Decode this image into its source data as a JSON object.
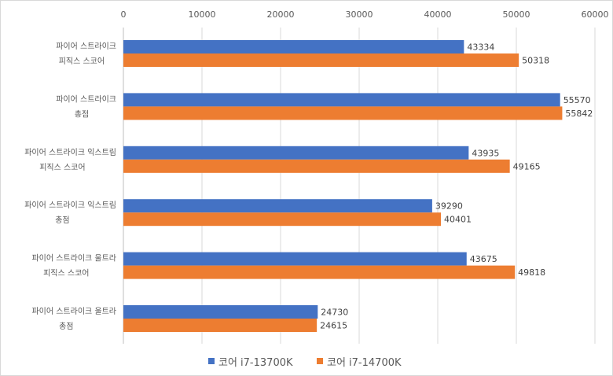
{
  "chart_data": {
    "type": "bar",
    "orientation": "horizontal",
    "categories": [
      [
        "파이어 스트라이크",
        "피직스 스코어"
      ],
      [
        "파이어 스트라이크",
        "총점"
      ],
      [
        "파이어 스트라이크 익스트림",
        "피직스 스코어"
      ],
      [
        "파이어 스트라이크 익스트림",
        "총점"
      ],
      [
        "파이어 스트라이크 울트라",
        "피직스 스코어"
      ],
      [
        "파이어 스트라이크 울트라",
        "총점"
      ]
    ],
    "series": [
      {
        "name": "코어 i7-13700K",
        "color": "#4472c4",
        "values": [
          43334,
          55570,
          43935,
          39290,
          43675,
          24730
        ]
      },
      {
        "name": "코어 i7-14700K",
        "color": "#ed7d31",
        "values": [
          50318,
          55842,
          49165,
          40401,
          49818,
          24615
        ]
      }
    ],
    "xlim": [
      0,
      60000
    ],
    "xticks": [
      0,
      10000,
      20000,
      30000,
      40000,
      50000,
      60000
    ],
    "xaxis_position": "top",
    "grid": true,
    "data_labels": true,
    "legend_position": "bottom"
  }
}
